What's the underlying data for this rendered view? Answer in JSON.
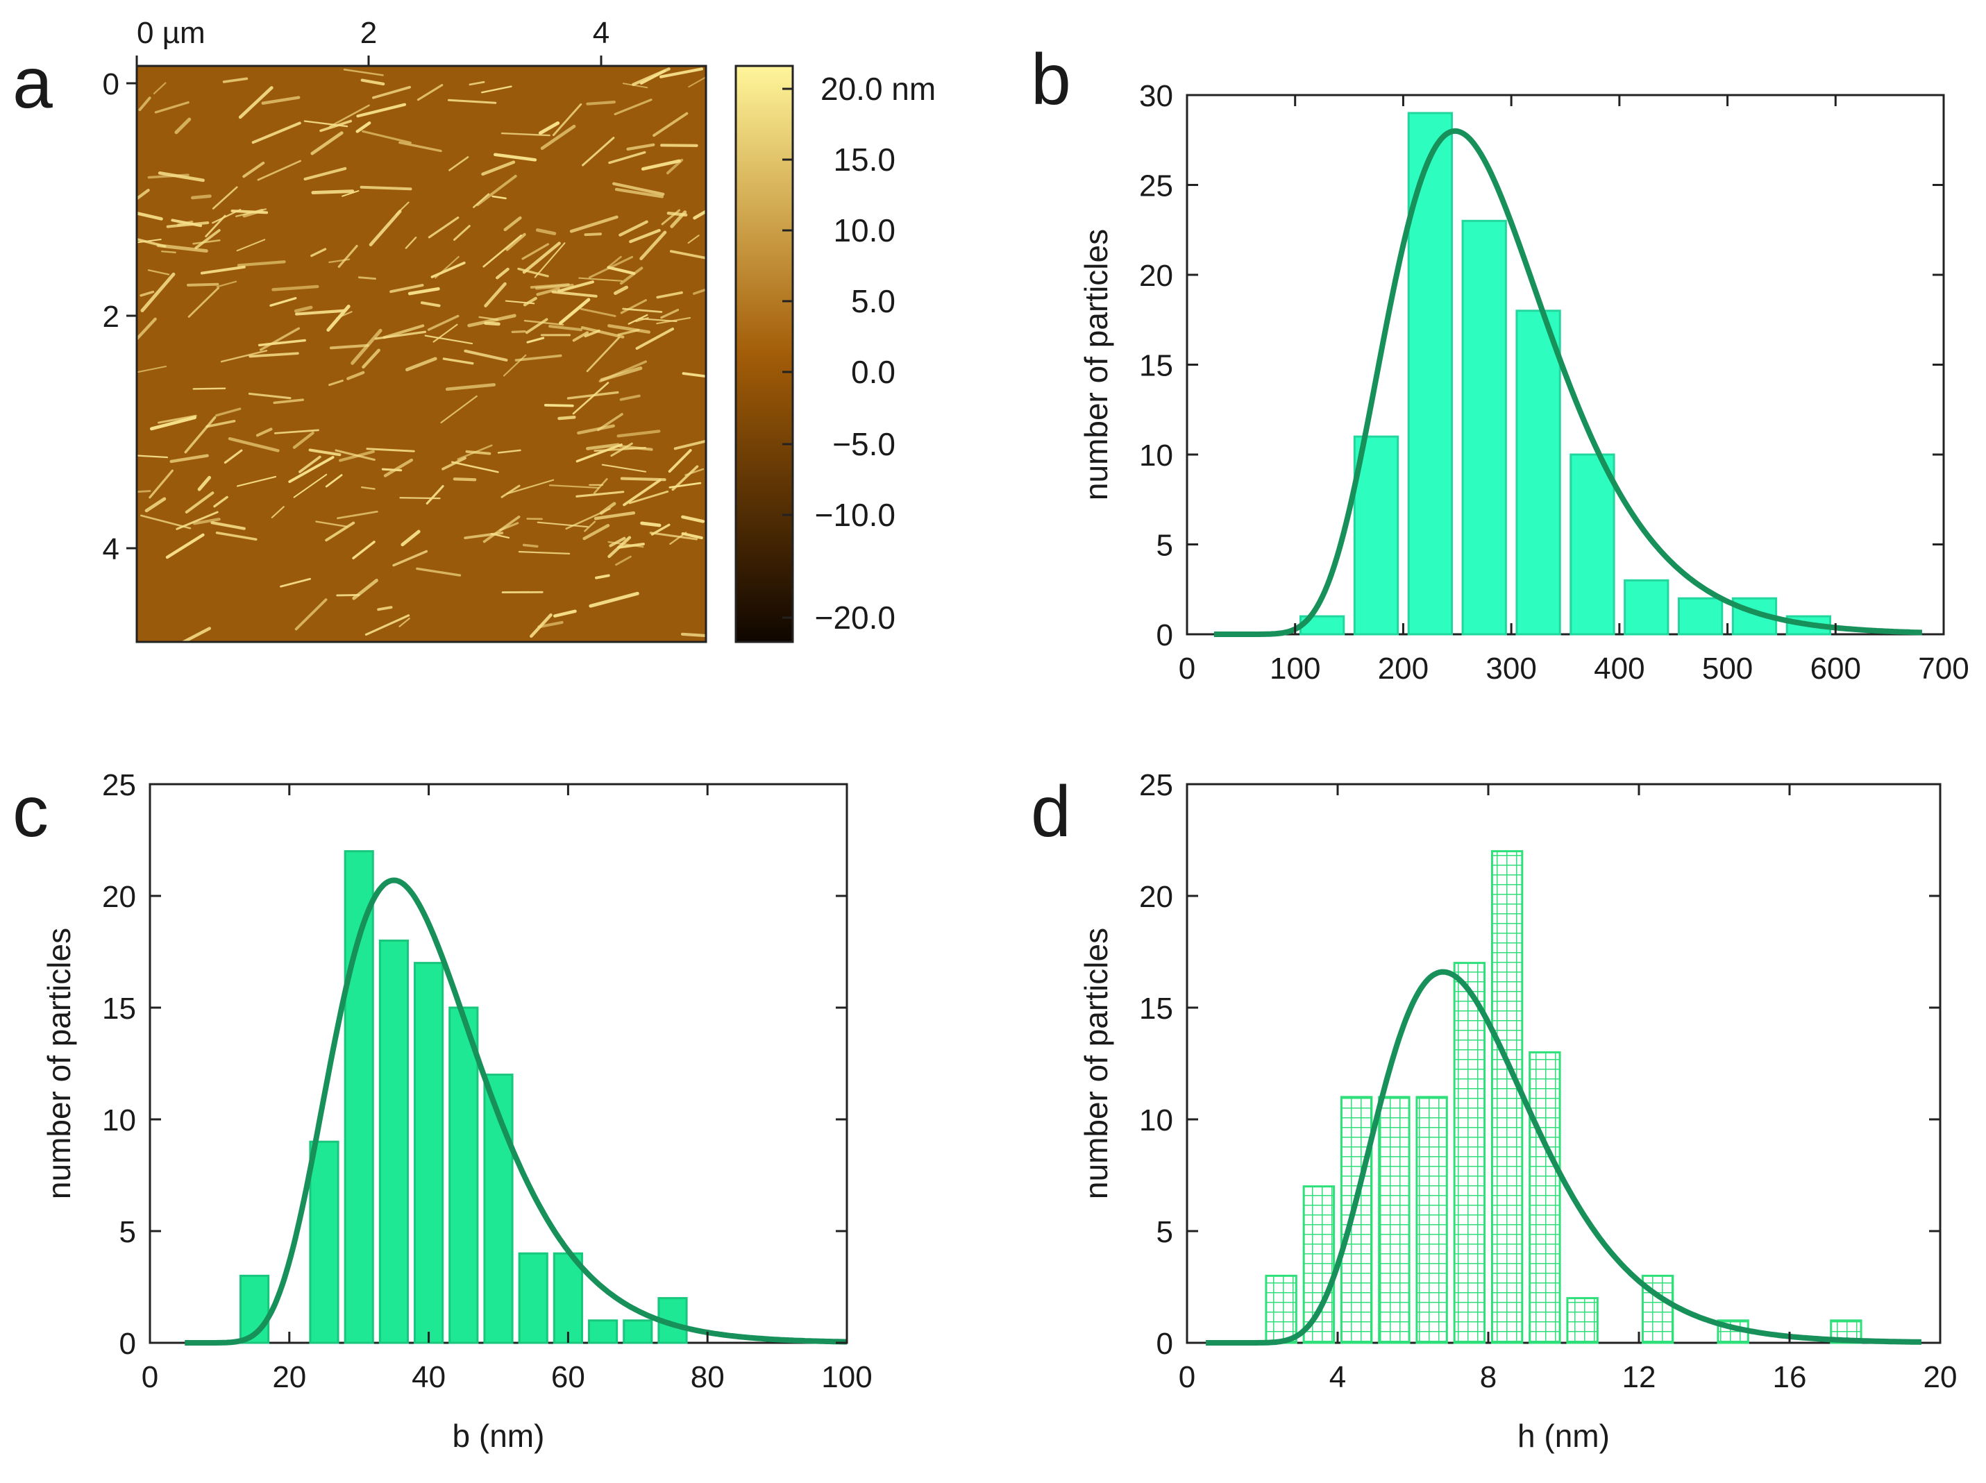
{
  "figure": {
    "panel_a": {
      "letter": "a",
      "x_ticks": [
        "0 µm",
        "2",
        "4"
      ],
      "y_ticks": [
        "0",
        "2",
        "4"
      ],
      "colorbar_ticks": [
        "20.0 nm",
        "15.0",
        "10.0",
        "5.0",
        "0.0",
        "−5.0",
        "−10.0",
        "−20.0"
      ],
      "colors": {
        "surface": "#9a5a0b",
        "fibril": "#f7e08a",
        "cb_top": "#fff59a",
        "cb_mid": "#a35d08",
        "cb_bottom": "#0f0600"
      }
    },
    "panel_b": {
      "letter": "b"
    },
    "panel_c": {
      "letter": "c"
    },
    "panel_d": {
      "letter": "d"
    }
  },
  "colors": {
    "bar_b": "#2efdc0",
    "bar_c": "#1ee894",
    "hatch_d": "#2fe07a",
    "fit": "#17905a"
  },
  "chart_data": [
    {
      "id": "b",
      "type": "bar",
      "title": "",
      "xlabel": "",
      "ylabel": "number of particles",
      "xlim": [
        0,
        700
      ],
      "ylim": [
        0,
        30
      ],
      "xticks": [
        0,
        100,
        200,
        300,
        400,
        500,
        600,
        700
      ],
      "yticks": [
        0,
        5,
        10,
        15,
        20,
        25,
        30
      ],
      "bins": [
        {
          "x0": 105,
          "x1": 145,
          "value": 1
        },
        {
          "x0": 155,
          "x1": 195,
          "value": 11
        },
        {
          "x0": 205,
          "x1": 245,
          "value": 29
        },
        {
          "x0": 255,
          "x1": 295,
          "value": 23
        },
        {
          "x0": 305,
          "x1": 345,
          "value": 18
        },
        {
          "x0": 355,
          "x1": 395,
          "value": 10
        },
        {
          "x0": 405,
          "x1": 445,
          "value": 3
        },
        {
          "x0": 455,
          "x1": 495,
          "value": 2
        },
        {
          "x0": 505,
          "x1": 545,
          "value": 2
        },
        {
          "x0": 555,
          "x1": 595,
          "value": 1
        }
      ],
      "fit": {
        "type": "lognormal",
        "peak_x": 248,
        "peak_y": 28,
        "start": 25,
        "end": 680
      }
    },
    {
      "id": "c",
      "type": "bar",
      "title": "",
      "xlabel": "b (nm)",
      "ylabel": "number of particles",
      "xlim": [
        0,
        100
      ],
      "ylim": [
        0,
        25
      ],
      "xticks": [
        0,
        20,
        40,
        60,
        80,
        100
      ],
      "yticks": [
        0,
        5,
        10,
        15,
        20,
        25
      ],
      "bins": [
        {
          "x0": 13,
          "x1": 17,
          "value": 3
        },
        {
          "x0": 23,
          "x1": 27,
          "value": 9
        },
        {
          "x0": 28,
          "x1": 32,
          "value": 22
        },
        {
          "x0": 33,
          "x1": 37,
          "value": 18
        },
        {
          "x0": 38,
          "x1": 42,
          "value": 17
        },
        {
          "x0": 43,
          "x1": 47,
          "value": 15
        },
        {
          "x0": 48,
          "x1": 52,
          "value": 12
        },
        {
          "x0": 53,
          "x1": 57,
          "value": 4
        },
        {
          "x0": 58,
          "x1": 62,
          "value": 4
        },
        {
          "x0": 63,
          "x1": 67,
          "value": 1
        },
        {
          "x0": 68,
          "x1": 72,
          "value": 1
        },
        {
          "x0": 73,
          "x1": 77,
          "value": 2
        }
      ],
      "fit": {
        "type": "lognormal",
        "peak_x": 35,
        "peak_y": 20.7,
        "start": 5,
        "end": 100
      }
    },
    {
      "id": "d",
      "type": "bar",
      "title": "",
      "xlabel": "h (nm)",
      "ylabel": "number of particles",
      "xlim": [
        0,
        20
      ],
      "ylim": [
        0,
        25
      ],
      "xticks": [
        0,
        4,
        8,
        12,
        16,
        20
      ],
      "yticks": [
        0,
        5,
        10,
        15,
        20,
        25
      ],
      "bins": [
        {
          "x0": 2.1,
          "x1": 2.9,
          "value": 3
        },
        {
          "x0": 3.1,
          "x1": 3.9,
          "value": 7
        },
        {
          "x0": 4.1,
          "x1": 4.9,
          "value": 11
        },
        {
          "x0": 5.1,
          "x1": 5.9,
          "value": 11
        },
        {
          "x0": 6.1,
          "x1": 6.9,
          "value": 11
        },
        {
          "x0": 7.1,
          "x1": 7.9,
          "value": 17
        },
        {
          "x0": 8.1,
          "x1": 8.9,
          "value": 22
        },
        {
          "x0": 9.1,
          "x1": 9.9,
          "value": 13
        },
        {
          "x0": 10.1,
          "x1": 10.9,
          "value": 2
        },
        {
          "x0": 12.1,
          "x1": 12.9,
          "value": 3
        },
        {
          "x0": 14.1,
          "x1": 14.9,
          "value": 1
        },
        {
          "x0": 17.1,
          "x1": 17.9,
          "value": 1
        }
      ],
      "fit": {
        "type": "lognormal",
        "peak_x": 6.8,
        "peak_y": 16.6,
        "start": 0.5,
        "end": 19.5
      }
    }
  ]
}
